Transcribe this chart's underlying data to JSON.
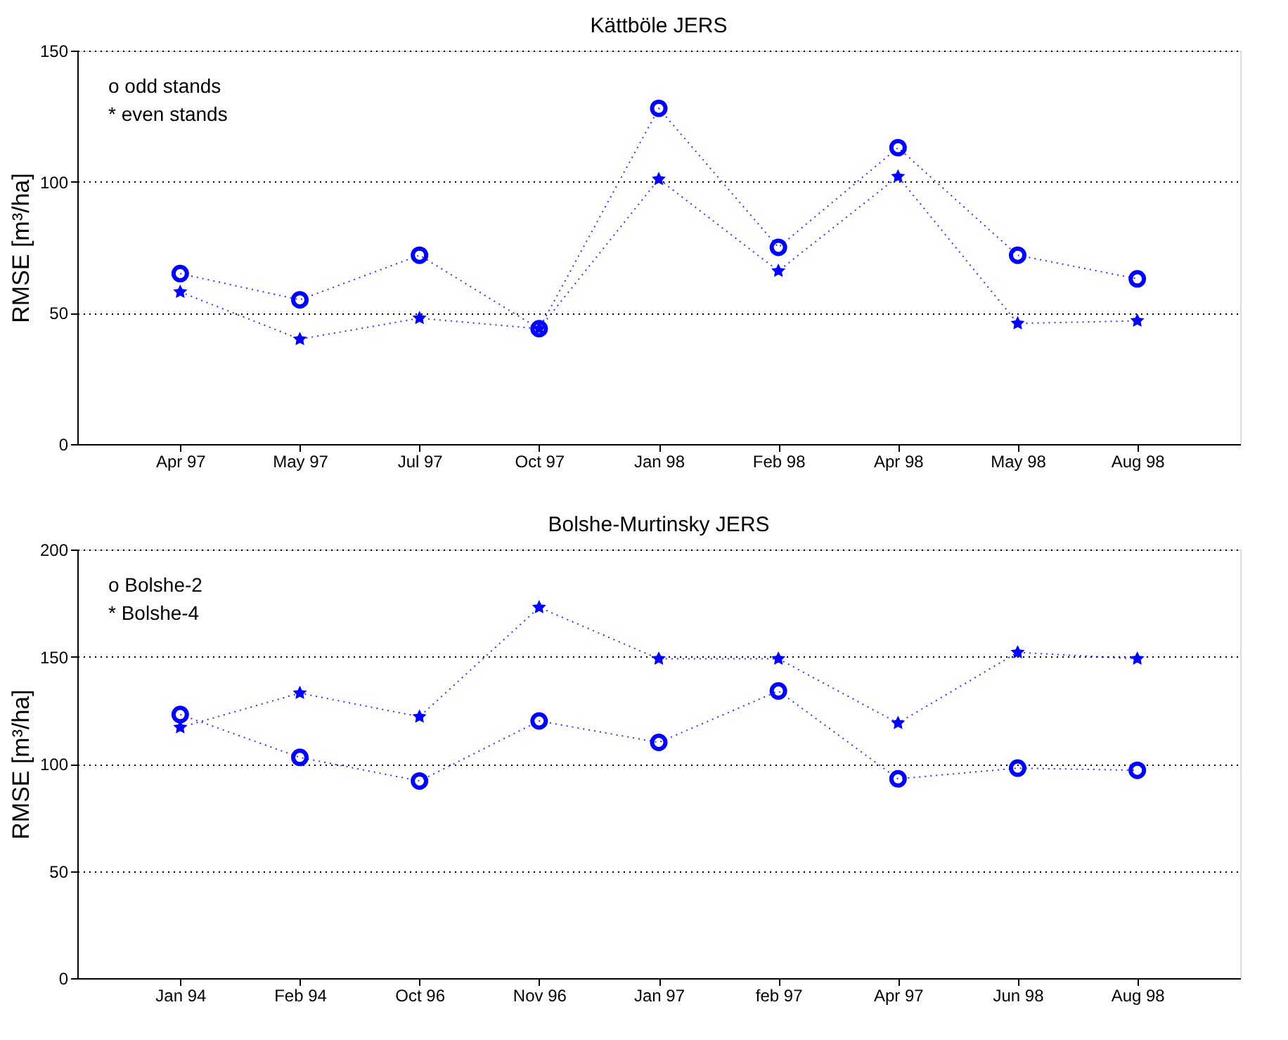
{
  "chart_data": [
    {
      "type": "line",
      "title": "Kättböle JERS",
      "ylabel": "RMSE   [m³/ha]",
      "categories": [
        "Apr 97",
        "May 97",
        "Jul 97",
        "Oct 97",
        "Jan 98",
        "Feb 98",
        "Apr 98",
        "May 98",
        "Aug 98"
      ],
      "series": [
        {
          "color": "#0000ff",
          "marker": "circle",
          "values": [
            65,
            55,
            72,
            44,
            128,
            75,
            113,
            72,
            63
          ]
        },
        {
          "color": "#0000ff",
          "marker": "star",
          "values": [
            58,
            40,
            48,
            44,
            101,
            66,
            102,
            46,
            47
          ]
        }
      ],
      "annotations": [
        "o odd stands",
        "* even stands"
      ],
      "ylim": [
        0,
        150
      ],
      "yticks": [
        0,
        50,
        100,
        150
      ],
      "grid": "y",
      "line_style": "dotted"
    },
    {
      "type": "line",
      "title": "Bolshe-Murtinsky JERS",
      "ylabel": "RMSE   [m³/ha]",
      "categories": [
        "Jan 94",
        "Feb 94",
        "Oct 96",
        "Nov 96",
        "Jan 97",
        "feb 97",
        "Apr 97",
        "Jun 98",
        "Aug 98"
      ],
      "series": [
        {
          "color": "#0000ff",
          "marker": "circle",
          "values": [
            123,
            103,
            92,
            120,
            110,
            134,
            93,
            98,
            97
          ]
        },
        {
          "color": "#0000ff",
          "marker": "star",
          "values": [
            117,
            133,
            122,
            173,
            149,
            149,
            119,
            152,
            149
          ]
        }
      ],
      "annotations": [
        "o Bolshe-2",
        "* Bolshe-4"
      ],
      "ylim": [
        0,
        200
      ],
      "yticks": [
        0,
        50,
        100,
        150,
        200
      ],
      "grid": "y",
      "line_style": "dotted"
    }
  ]
}
